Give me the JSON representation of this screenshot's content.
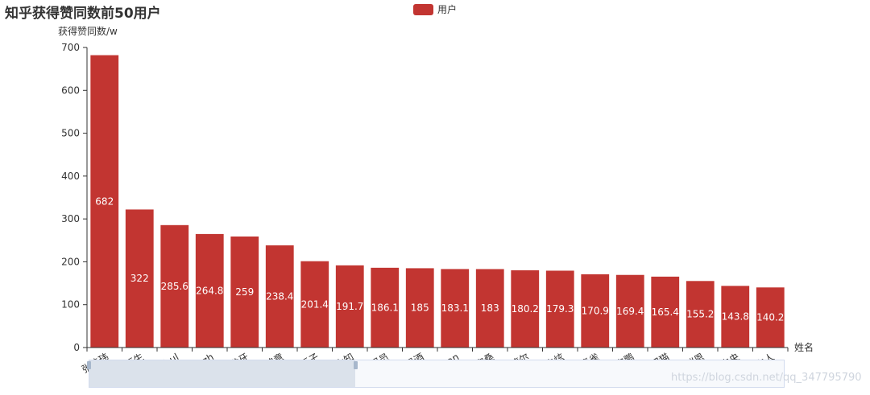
{
  "chart_data": {
    "type": "bar",
    "title": "知乎获得赞同数前50用户",
    "ylabel": "获得赞同数/w",
    "xlabel": "姓名",
    "ylim": [
      0,
      700
    ],
    "yticks": [
      0,
      100,
      200,
      300,
      400,
      500,
      600,
      700
    ],
    "legend_position": "top-center",
    "series": [
      {
        "name": "用户",
        "color": "#c23531",
        "label_color": "#ffffff",
        "categories": [
          "张佳玮",
          "丁香医生",
          "Seasee Youl",
          "vczh",
          "龙牙",
          "奎苑锦意",
          "豆子",
          "鬼木知",
          "SME情报员",
          "温酒",
          "ze ran",
          "宏桑",
          "孟德尔",
          "朱炫",
          "青雀",
          "申鹏",
          "肥肥猫",
          "王瑞恩",
          "共青团中央",
          "寺主人"
        ],
        "values": [
          682,
          322,
          285.6,
          264.8,
          259,
          238.4,
          201.4,
          191.7,
          186.1,
          185,
          183.1,
          183,
          180.2,
          179.3,
          170.9,
          169.4,
          165.4,
          155.2,
          143.8,
          140.2
        ]
      }
    ],
    "grid": false,
    "datazoom": true
  },
  "watermark": "https://blog.csdn.net/qq_347795790"
}
